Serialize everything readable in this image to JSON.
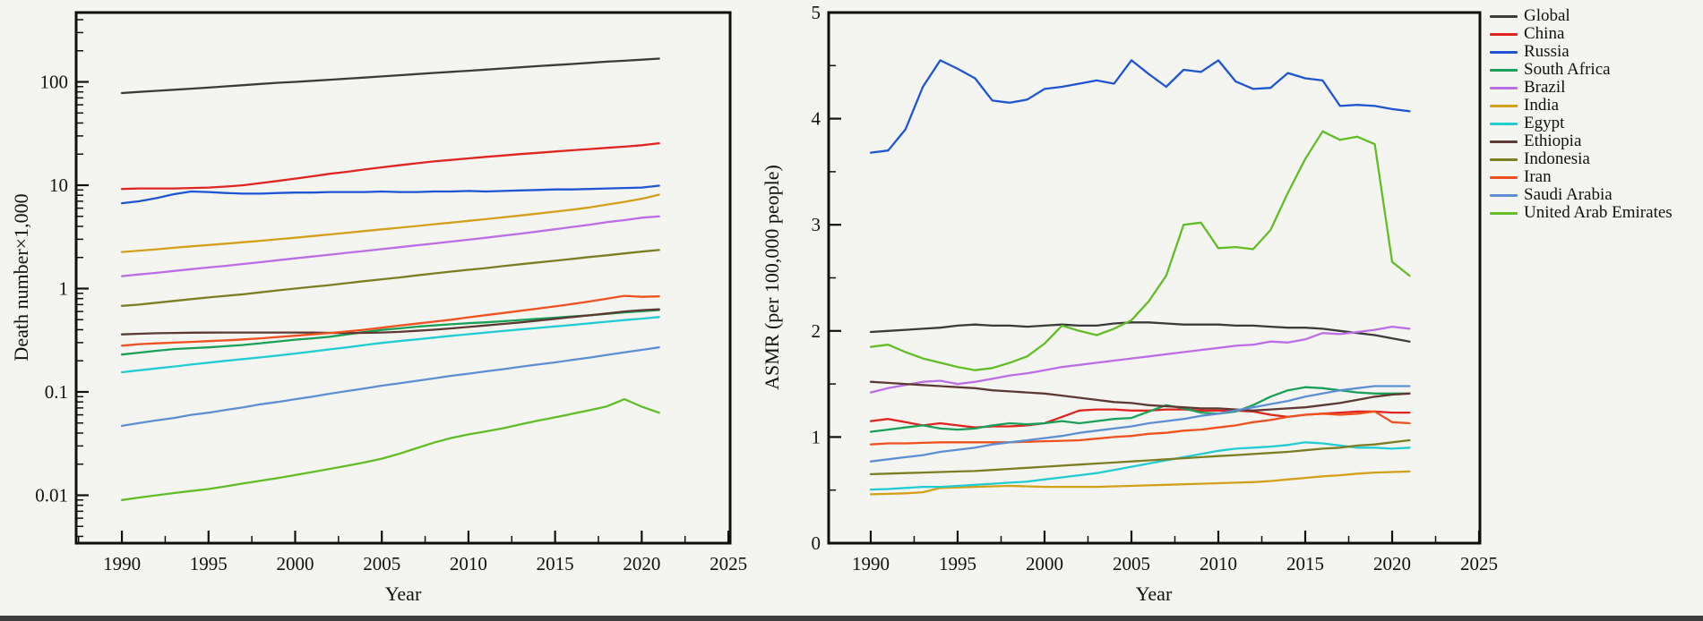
{
  "figure": {
    "background": "#f4f4f1",
    "frame_color": "#101010"
  },
  "years": [
    1990,
    1991,
    1992,
    1993,
    1994,
    1995,
    1996,
    1997,
    1998,
    1999,
    2000,
    2001,
    2002,
    2003,
    2004,
    2005,
    2006,
    2007,
    2008,
    2009,
    2010,
    2011,
    2012,
    2013,
    2014,
    2015,
    2016,
    2017,
    2018,
    2019,
    2020,
    2021
  ],
  "chart_data": [
    {
      "id": "deaths",
      "type": "line",
      "xlabel": "Year",
      "ylabel": "Death number×1,000",
      "y_scale": "log",
      "x_range": [
        1987.36,
        2025.1
      ],
      "y_range": [
        0.00344,
        469
      ],
      "x_ticks": [
        1990,
        1995,
        2000,
        2005,
        2010,
        2015,
        2020,
        2025
      ],
      "y_ticks": [
        {
          "v": 100,
          "label": "100"
        },
        {
          "v": 10,
          "label": "10"
        },
        {
          "v": 1,
          "label": "1"
        },
        {
          "v": 0.1,
          "label": "0.1"
        },
        {
          "v": 0.01,
          "label": "0.01"
        }
      ],
      "series": [
        {
          "name": "Global",
          "color": "#3b3b3b",
          "values": [
            78,
            80,
            82,
            84,
            86,
            88,
            90.5,
            93,
            95.5,
            98,
            100,
            102.5,
            105,
            107.5,
            110,
            113,
            116,
            119,
            122,
            125,
            128,
            131.5,
            135,
            138.5,
            142,
            145.5,
            149,
            153,
            157,
            160,
            164,
            168
          ]
        },
        {
          "name": "China",
          "color": "#e02420",
          "values": [
            9.2,
            9.3,
            9.3,
            9.3,
            9.4,
            9.5,
            9.7,
            10.0,
            10.5,
            11.0,
            11.6,
            12.2,
            12.9,
            13.5,
            14.2,
            14.9,
            15.6,
            16.3,
            17.0,
            17.6,
            18.2,
            18.8,
            19.4,
            20.0,
            20.6,
            21.2,
            21.8,
            22.4,
            23.0,
            23.6,
            24.4,
            25.5
          ]
        },
        {
          "name": "Russia",
          "color": "#1e55d3",
          "values": [
            6.7,
            7.0,
            7.5,
            8.2,
            8.7,
            8.6,
            8.4,
            8.3,
            8.3,
            8.4,
            8.5,
            8.5,
            8.6,
            8.6,
            8.6,
            8.7,
            8.6,
            8.6,
            8.7,
            8.7,
            8.8,
            8.7,
            8.8,
            8.9,
            9.0,
            9.1,
            9.1,
            9.2,
            9.3,
            9.4,
            9.5,
            9.9
          ]
        },
        {
          "name": "South Africa",
          "color": "#19a15a",
          "values": [
            0.23,
            0.24,
            0.25,
            0.26,
            0.265,
            0.27,
            0.277,
            0.285,
            0.296,
            0.308,
            0.32,
            0.33,
            0.342,
            0.36,
            0.38,
            0.398,
            0.412,
            0.428,
            0.44,
            0.451,
            0.462,
            0.472,
            0.483,
            0.497,
            0.51,
            0.523,
            0.538,
            0.552,
            0.57,
            0.588,
            0.603,
            0.62
          ]
        },
        {
          "name": "Brazil",
          "color": "#bb6ee5",
          "values": [
            1.32,
            1.37,
            1.42,
            1.48,
            1.54,
            1.6,
            1.66,
            1.73,
            1.8,
            1.88,
            1.96,
            2.04,
            2.13,
            2.22,
            2.31,
            2.41,
            2.51,
            2.62,
            2.73,
            2.85,
            2.97,
            3.1,
            3.25,
            3.4,
            3.57,
            3.75,
            3.95,
            4.15,
            4.4,
            4.6,
            4.85,
            5.0
          ]
        },
        {
          "name": "India",
          "color": "#d2a019",
          "values": [
            2.26,
            2.33,
            2.4,
            2.48,
            2.56,
            2.64,
            2.72,
            2.81,
            2.9,
            3.0,
            3.1,
            3.22,
            3.34,
            3.47,
            3.6,
            3.74,
            3.88,
            4.03,
            4.19,
            4.35,
            4.52,
            4.7,
            4.89,
            5.1,
            5.32,
            5.55,
            5.8,
            6.1,
            6.5,
            6.9,
            7.4,
            8.1
          ]
        },
        {
          "name": "Egypt",
          "color": "#21ccd2",
          "values": [
            0.155,
            0.162,
            0.169,
            0.176,
            0.184,
            0.192,
            0.2,
            0.208,
            0.216,
            0.225,
            0.235,
            0.246,
            0.258,
            0.27,
            0.284,
            0.298,
            0.31,
            0.322,
            0.335,
            0.349,
            0.362,
            0.375,
            0.389,
            0.402,
            0.416,
            0.43,
            0.445,
            0.461,
            0.478,
            0.496,
            0.512,
            0.53
          ]
        },
        {
          "name": "Ethiopia",
          "color": "#5c3a33",
          "values": [
            0.36,
            0.365,
            0.37,
            0.372,
            0.374,
            0.375,
            0.376,
            0.376,
            0.376,
            0.376,
            0.376,
            0.375,
            0.373,
            0.371,
            0.373,
            0.376,
            0.381,
            0.39,
            0.4,
            0.412,
            0.425,
            0.44,
            0.455,
            0.471,
            0.49,
            0.51,
            0.53,
            0.551,
            0.575,
            0.6,
            0.618,
            0.63
          ]
        },
        {
          "name": "Indonesia",
          "color": "#7c7e22",
          "values": [
            0.68,
            0.7,
            0.73,
            0.76,
            0.79,
            0.82,
            0.85,
            0.88,
            0.92,
            0.96,
            1.0,
            1.04,
            1.08,
            1.13,
            1.18,
            1.23,
            1.28,
            1.34,
            1.4,
            1.46,
            1.52,
            1.58,
            1.65,
            1.72,
            1.79,
            1.86,
            1.94,
            2.02,
            2.1,
            2.19,
            2.28,
            2.36
          ]
        },
        {
          "name": "Iran",
          "color": "#f0511f",
          "values": [
            0.28,
            0.29,
            0.295,
            0.3,
            0.305,
            0.31,
            0.315,
            0.322,
            0.33,
            0.34,
            0.35,
            0.36,
            0.372,
            0.385,
            0.4,
            0.418,
            0.438,
            0.458,
            0.478,
            0.5,
            0.527,
            0.553,
            0.58,
            0.61,
            0.64,
            0.672,
            0.71,
            0.75,
            0.8,
            0.85,
            0.832,
            0.84
          ]
        },
        {
          "name": "Saudi Arabia",
          "color": "#5e8fd5",
          "values": [
            0.047,
            0.05,
            0.053,
            0.056,
            0.06,
            0.063,
            0.067,
            0.071,
            0.076,
            0.08,
            0.085,
            0.09,
            0.096,
            0.102,
            0.108,
            0.115,
            0.121,
            0.128,
            0.135,
            0.143,
            0.15,
            0.158,
            0.166,
            0.175,
            0.184,
            0.193,
            0.204,
            0.215,
            0.228,
            0.242,
            0.255,
            0.27
          ]
        },
        {
          "name": "United Arab Emirates",
          "color": "#62bd26",
          "values": [
            0.009,
            0.0095,
            0.01,
            0.0105,
            0.011,
            0.0115,
            0.0122,
            0.013,
            0.0138,
            0.0147,
            0.0157,
            0.0168,
            0.018,
            0.0193,
            0.0208,
            0.0226,
            0.0252,
            0.0285,
            0.0323,
            0.0358,
            0.0388,
            0.0415,
            0.0445,
            0.0485,
            0.0527,
            0.0567,
            0.0615,
            0.0665,
            0.0725,
            0.085,
            0.072,
            0.063
          ]
        }
      ]
    },
    {
      "id": "asmr",
      "type": "line",
      "xlabel": "Year",
      "ylabel": "ASMR (per 100,000 people)",
      "y_scale": "linear",
      "x_range": [
        1987.58,
        2025.05
      ],
      "y_range": [
        0,
        5
      ],
      "x_ticks": [
        1990,
        1995,
        2000,
        2005,
        2010,
        2015,
        2020,
        2025
      ],
      "y_ticks": [
        {
          "v": 0,
          "label": "0"
        },
        {
          "v": 1,
          "label": "1"
        },
        {
          "v": 2,
          "label": "2"
        },
        {
          "v": 3,
          "label": "3"
        },
        {
          "v": 4,
          "label": "4"
        },
        {
          "v": 5,
          "label": "5"
        }
      ],
      "y_minor_step": 0.5,
      "series": [
        {
          "name": "Global",
          "color": "#3b3b3b",
          "values": [
            1.99,
            2.0,
            2.01,
            2.02,
            2.03,
            2.05,
            2.06,
            2.05,
            2.05,
            2.04,
            2.05,
            2.06,
            2.05,
            2.05,
            2.07,
            2.08,
            2.08,
            2.07,
            2.06,
            2.06,
            2.06,
            2.05,
            2.05,
            2.04,
            2.03,
            2.03,
            2.02,
            2.0,
            1.98,
            1.96,
            1.93,
            1.9
          ]
        },
        {
          "name": "China",
          "color": "#e02420",
          "values": [
            1.15,
            1.17,
            1.14,
            1.11,
            1.13,
            1.11,
            1.09,
            1.1,
            1.1,
            1.11,
            1.13,
            1.19,
            1.25,
            1.26,
            1.26,
            1.25,
            1.25,
            1.26,
            1.26,
            1.25,
            1.25,
            1.25,
            1.24,
            1.21,
            1.19,
            1.21,
            1.22,
            1.23,
            1.24,
            1.24,
            1.23,
            1.23
          ]
        },
        {
          "name": "Russia",
          "color": "#1e55d3",
          "values": [
            3.68,
            3.7,
            3.9,
            4.3,
            4.55,
            4.47,
            4.38,
            4.17,
            4.15,
            4.18,
            4.28,
            4.3,
            4.33,
            4.36,
            4.33,
            4.55,
            4.42,
            4.3,
            4.46,
            4.44,
            4.55,
            4.35,
            4.28,
            4.29,
            4.43,
            4.38,
            4.36,
            4.12,
            4.13,
            4.12,
            4.09,
            4.07
          ]
        },
        {
          "name": "South Africa",
          "color": "#19a15a",
          "values": [
            1.05,
            1.07,
            1.09,
            1.11,
            1.08,
            1.07,
            1.08,
            1.11,
            1.13,
            1.12,
            1.13,
            1.15,
            1.13,
            1.15,
            1.17,
            1.18,
            1.24,
            1.3,
            1.27,
            1.23,
            1.22,
            1.24,
            1.3,
            1.38,
            1.44,
            1.47,
            1.46,
            1.44,
            1.42,
            1.41,
            1.41,
            1.41
          ]
        },
        {
          "name": "Brazil",
          "color": "#bb6ee5",
          "values": [
            1.42,
            1.46,
            1.49,
            1.52,
            1.53,
            1.5,
            1.52,
            1.55,
            1.58,
            1.6,
            1.63,
            1.66,
            1.68,
            1.7,
            1.72,
            1.74,
            1.76,
            1.78,
            1.8,
            1.82,
            1.84,
            1.86,
            1.87,
            1.9,
            1.89,
            1.92,
            1.98,
            1.97,
            1.99,
            2.01,
            2.04,
            2.02
          ]
        },
        {
          "name": "India",
          "color": "#d2a019",
          "values": [
            0.46,
            0.465,
            0.47,
            0.48,
            0.52,
            0.525,
            0.53,
            0.535,
            0.54,
            0.535,
            0.53,
            0.53,
            0.53,
            0.53,
            0.535,
            0.54,
            0.545,
            0.55,
            0.555,
            0.56,
            0.565,
            0.57,
            0.575,
            0.585,
            0.6,
            0.615,
            0.63,
            0.64,
            0.655,
            0.665,
            0.67,
            0.675
          ]
        },
        {
          "name": "Egypt",
          "color": "#21ccd2",
          "values": [
            0.505,
            0.51,
            0.52,
            0.53,
            0.53,
            0.54,
            0.55,
            0.56,
            0.57,
            0.58,
            0.6,
            0.62,
            0.64,
            0.66,
            0.69,
            0.72,
            0.75,
            0.78,
            0.81,
            0.84,
            0.87,
            0.89,
            0.9,
            0.91,
            0.925,
            0.95,
            0.94,
            0.92,
            0.9,
            0.9,
            0.89,
            0.9
          ]
        },
        {
          "name": "Ethiopia",
          "color": "#5c3a33",
          "values": [
            1.52,
            1.51,
            1.5,
            1.49,
            1.48,
            1.47,
            1.46,
            1.44,
            1.43,
            1.42,
            1.41,
            1.39,
            1.37,
            1.35,
            1.33,
            1.32,
            1.3,
            1.29,
            1.28,
            1.27,
            1.27,
            1.26,
            1.25,
            1.26,
            1.27,
            1.28,
            1.3,
            1.32,
            1.35,
            1.38,
            1.4,
            1.41
          ]
        },
        {
          "name": "Indonesia",
          "color": "#7c7e22",
          "values": [
            0.65,
            0.655,
            0.66,
            0.665,
            0.67,
            0.675,
            0.68,
            0.69,
            0.7,
            0.71,
            0.72,
            0.73,
            0.74,
            0.75,
            0.76,
            0.77,
            0.78,
            0.79,
            0.8,
            0.81,
            0.82,
            0.83,
            0.84,
            0.85,
            0.86,
            0.875,
            0.89,
            0.9,
            0.92,
            0.93,
            0.95,
            0.97
          ]
        },
        {
          "name": "Iran",
          "color": "#f0511f",
          "values": [
            0.93,
            0.94,
            0.94,
            0.945,
            0.95,
            0.95,
            0.95,
            0.95,
            0.95,
            0.955,
            0.96,
            0.965,
            0.97,
            0.985,
            1.0,
            1.01,
            1.03,
            1.04,
            1.06,
            1.07,
            1.09,
            1.11,
            1.14,
            1.16,
            1.19,
            1.21,
            1.22,
            1.21,
            1.22,
            1.24,
            1.14,
            1.13
          ]
        },
        {
          "name": "Saudi Arabia",
          "color": "#5e8fd5",
          "values": [
            0.77,
            0.79,
            0.81,
            0.83,
            0.86,
            0.88,
            0.9,
            0.93,
            0.95,
            0.97,
            0.99,
            1.01,
            1.04,
            1.06,
            1.08,
            1.1,
            1.13,
            1.15,
            1.17,
            1.2,
            1.22,
            1.25,
            1.28,
            1.31,
            1.34,
            1.38,
            1.41,
            1.44,
            1.46,
            1.48,
            1.48,
            1.48
          ]
        },
        {
          "name": "United Arab Emirates",
          "color": "#62bd26",
          "values": [
            1.85,
            1.87,
            1.8,
            1.74,
            1.7,
            1.66,
            1.63,
            1.65,
            1.7,
            1.76,
            1.88,
            2.05,
            2.0,
            1.96,
            2.02,
            2.1,
            2.28,
            2.52,
            3.0,
            3.02,
            2.78,
            2.79,
            2.77,
            2.95,
            3.3,
            3.62,
            3.88,
            3.8,
            3.83,
            3.76,
            2.65,
            2.52
          ]
        }
      ]
    }
  ]
}
